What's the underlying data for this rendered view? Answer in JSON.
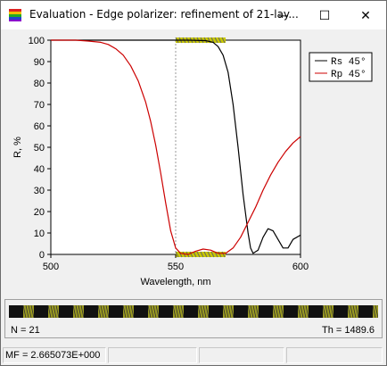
{
  "window": {
    "title": "Evaluation - Edge polarizer: refinement of 21-lay...",
    "minimize_glyph": "─",
    "maximize_glyph": "☐",
    "close_glyph": "✕",
    "icon": "rainbow-stack-icon"
  },
  "chart_data": {
    "type": "line",
    "xlabel": "Wavelength, nm",
    "ylabel": "R, %",
    "xlim": [
      500,
      600
    ],
    "ylim": [
      0,
      100
    ],
    "x_ticks": [
      "500",
      "550",
      "600"
    ],
    "y_ticks": [
      "0",
      "10",
      "20",
      "30",
      "40",
      "50",
      "60",
      "70",
      "80",
      "90",
      "100"
    ],
    "grid": "dotted at 550",
    "legend_placement": "top-right",
    "target_markers": [
      {
        "x_start": 550,
        "x_end": 570,
        "y": 100
      },
      {
        "x_start": 550,
        "x_end": 570,
        "y": 0
      }
    ],
    "series": [
      {
        "name": "Rs 45°",
        "color": "#000000",
        "x": [
          500,
          520,
          540,
          555,
          562,
          565,
          567,
          569,
          571,
          573,
          575,
          577,
          579,
          580,
          581,
          583,
          585,
          587,
          589,
          591,
          593,
          595,
          597,
          600
        ],
        "y": [
          100,
          100,
          100,
          100,
          99.8,
          99,
          97,
          93,
          85,
          70,
          50,
          28,
          10,
          3,
          0.5,
          2,
          8,
          12,
          11,
          7,
          3,
          3,
          7,
          9
        ]
      },
      {
        "name": "Rp 45°",
        "color": "#cc0000",
        "x": [
          500,
          505,
          510,
          515,
          520,
          523,
          526,
          529,
          532,
          535,
          538,
          540,
          542,
          544,
          546,
          548,
          550,
          552,
          555,
          558,
          561,
          564,
          567,
          570,
          573,
          576,
          579,
          582,
          585,
          588,
          591,
          594,
          597,
          600
        ],
        "y": [
          100,
          100,
          100,
          99.6,
          99,
          98,
          96,
          93,
          88,
          81,
          71,
          62,
          51,
          38,
          24,
          11,
          3,
          0.5,
          0,
          1.5,
          2.5,
          2,
          0.5,
          0.5,
          3,
          8,
          15,
          22,
          30,
          37,
          43,
          48,
          52,
          55
        ]
      }
    ]
  },
  "bottom_panel": {
    "n_label": "N = 21",
    "th_label": "Th = 1489.6"
  },
  "status": {
    "mf_label": "MF =  2.665073E+000"
  }
}
